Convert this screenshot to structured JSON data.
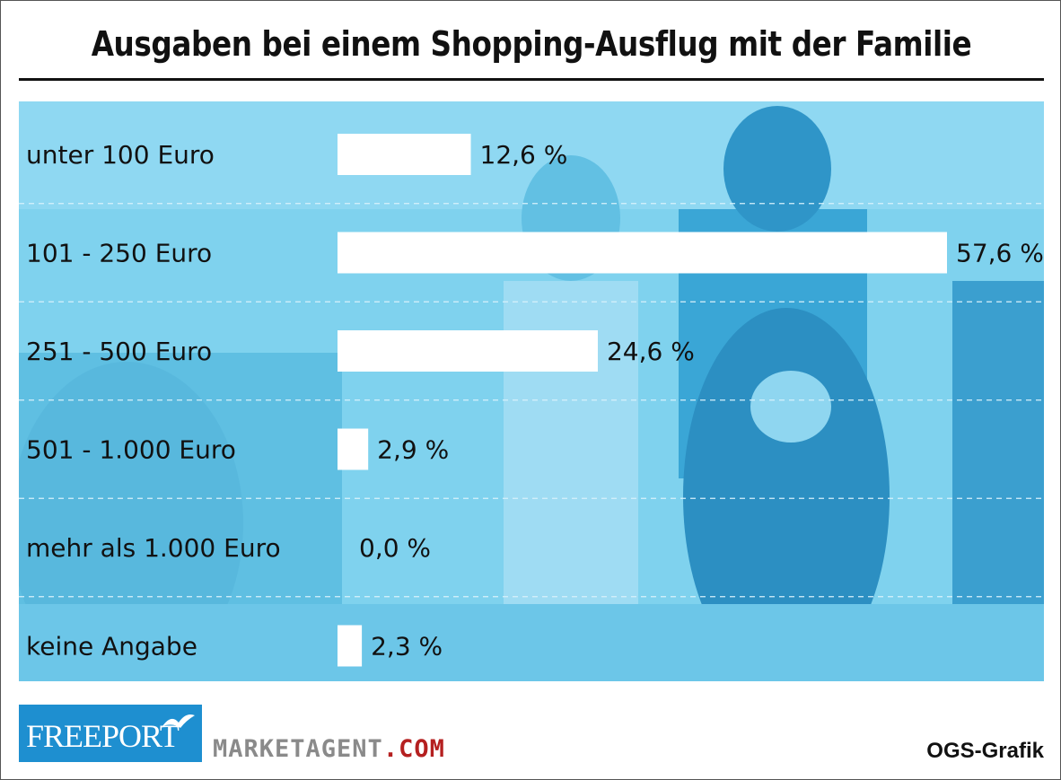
{
  "title": "Ausgaben bei einem Shopping-Ausflug mit der Familie",
  "chart_data": {
    "type": "bar",
    "orientation": "horizontal",
    "title": "Ausgaben bei einem Shopping-Ausflug mit der Familie",
    "categories": [
      "unter 100 Euro",
      "101 - 250 Euro",
      "251 - 500 Euro",
      "501 - 1.000 Euro",
      "mehr als 1.000 Euro",
      "keine Angabe"
    ],
    "values": [
      12.6,
      57.6,
      24.6,
      2.9,
      0.0,
      2.3
    ],
    "value_labels": [
      "12,6 %",
      "57,6 %",
      "24,6 %",
      "2,9 %",
      "0,0 %",
      "2,3 %"
    ],
    "xlim": [
      0,
      57.6
    ],
    "grid": "dashed separators between rows",
    "bar_color": "#ffffff",
    "panel_color": "#6fcbea"
  },
  "footer": {
    "logo_freeport": "FREEPORT",
    "logo_market_main": "MARKETAGENT",
    "logo_market_domain": ".COM",
    "credit": "OGS-Grafik"
  }
}
